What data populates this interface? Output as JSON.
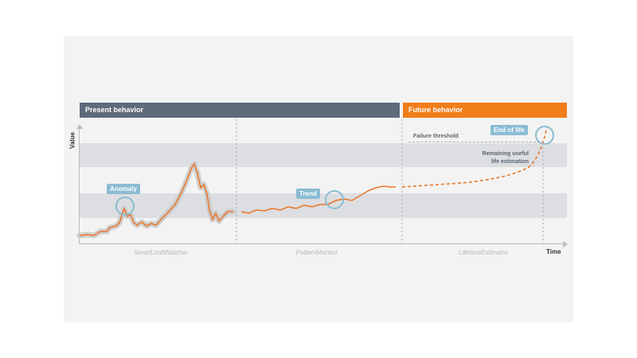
{
  "headers": {
    "present": "Present behavior",
    "future": "Future behavior"
  },
  "axes": {
    "y_label": "Value",
    "x_label": "Time"
  },
  "sections": [
    "SmartLimitWatcher",
    "PatternMonitor",
    "LifetimeEstimator"
  ],
  "annotations": {
    "anomaly": "Anomaly",
    "trend": "Trend",
    "end_of_life": "End of life",
    "failure_threshold": "Failure threshold",
    "remaining_life": "Remaining useful\nlife estimation"
  },
  "colors": {
    "present_header": "#5e6b7a",
    "future_header": "#f07d1a",
    "signal": "#e8772a",
    "highlight_circle": "#8bbcd3",
    "band": "#dcdee1"
  }
}
